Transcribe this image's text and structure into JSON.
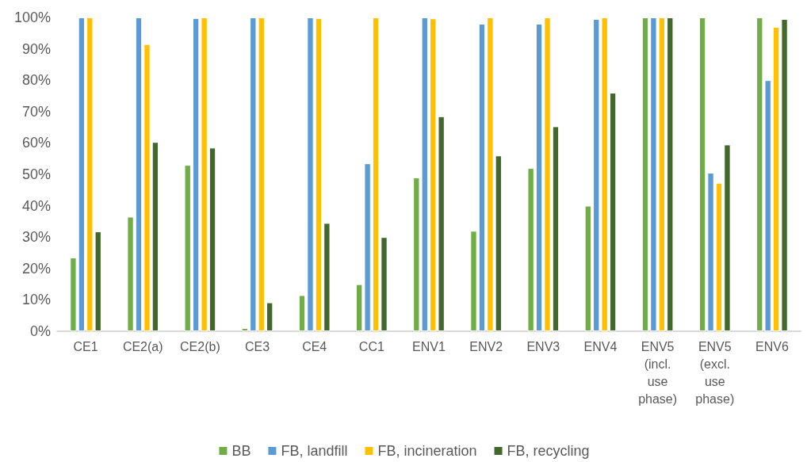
{
  "chart_data": {
    "type": "bar",
    "categories": [
      "CE1",
      "CE2(a)",
      "CE2(b)",
      "CE3",
      "CE4",
      "CC1",
      "ENV1",
      "ENV2",
      "ENV3",
      "ENV4",
      "ENV5\n(incl.\nuse\nphase)",
      "ENV5\n(excl.\nuse\nphase)",
      "ENV6"
    ],
    "series": [
      {
        "name": "BB",
        "color": "#70ad47",
        "values": [
          23.5,
          36.5,
          53,
          1,
          11.5,
          15,
          49,
          32,
          52,
          40,
          100,
          100,
          100
        ]
      },
      {
        "name": "FB, landfill",
        "color": "#5b9bd5",
        "values": [
          100,
          100,
          99.8,
          100,
          100,
          53.5,
          100,
          98,
          98,
          99.5,
          100,
          50.5,
          80
        ]
      },
      {
        "name": "FB, incineration",
        "color": "#ffc000",
        "values": [
          100,
          91.5,
          100,
          100,
          99.8,
          100,
          99.7,
          100,
          100,
          100,
          100,
          47.3,
          97
        ]
      },
      {
        "name": "FB, recycling",
        "color": "#43682b",
        "values": [
          31.8,
          60.3,
          58.5,
          9.2,
          34.5,
          30,
          68.5,
          56,
          65.3,
          76,
          100,
          59.5,
          99.5
        ]
      }
    ],
    "ylim": [
      0,
      100
    ],
    "yticks": [
      {
        "value": 0,
        "label": "0%"
      },
      {
        "value": 10,
        "label": "10%"
      },
      {
        "value": 20,
        "label": "20%"
      },
      {
        "value": 30,
        "label": "30%"
      },
      {
        "value": 40,
        "label": "40%"
      },
      {
        "value": 50,
        "label": "50%"
      },
      {
        "value": 60,
        "label": "60%"
      },
      {
        "value": 70,
        "label": "70%"
      },
      {
        "value": 80,
        "label": "80%"
      },
      {
        "value": 90,
        "label": "90%"
      },
      {
        "value": 100,
        "label": "100%"
      }
    ],
    "grid": false,
    "legend": "bottom"
  }
}
